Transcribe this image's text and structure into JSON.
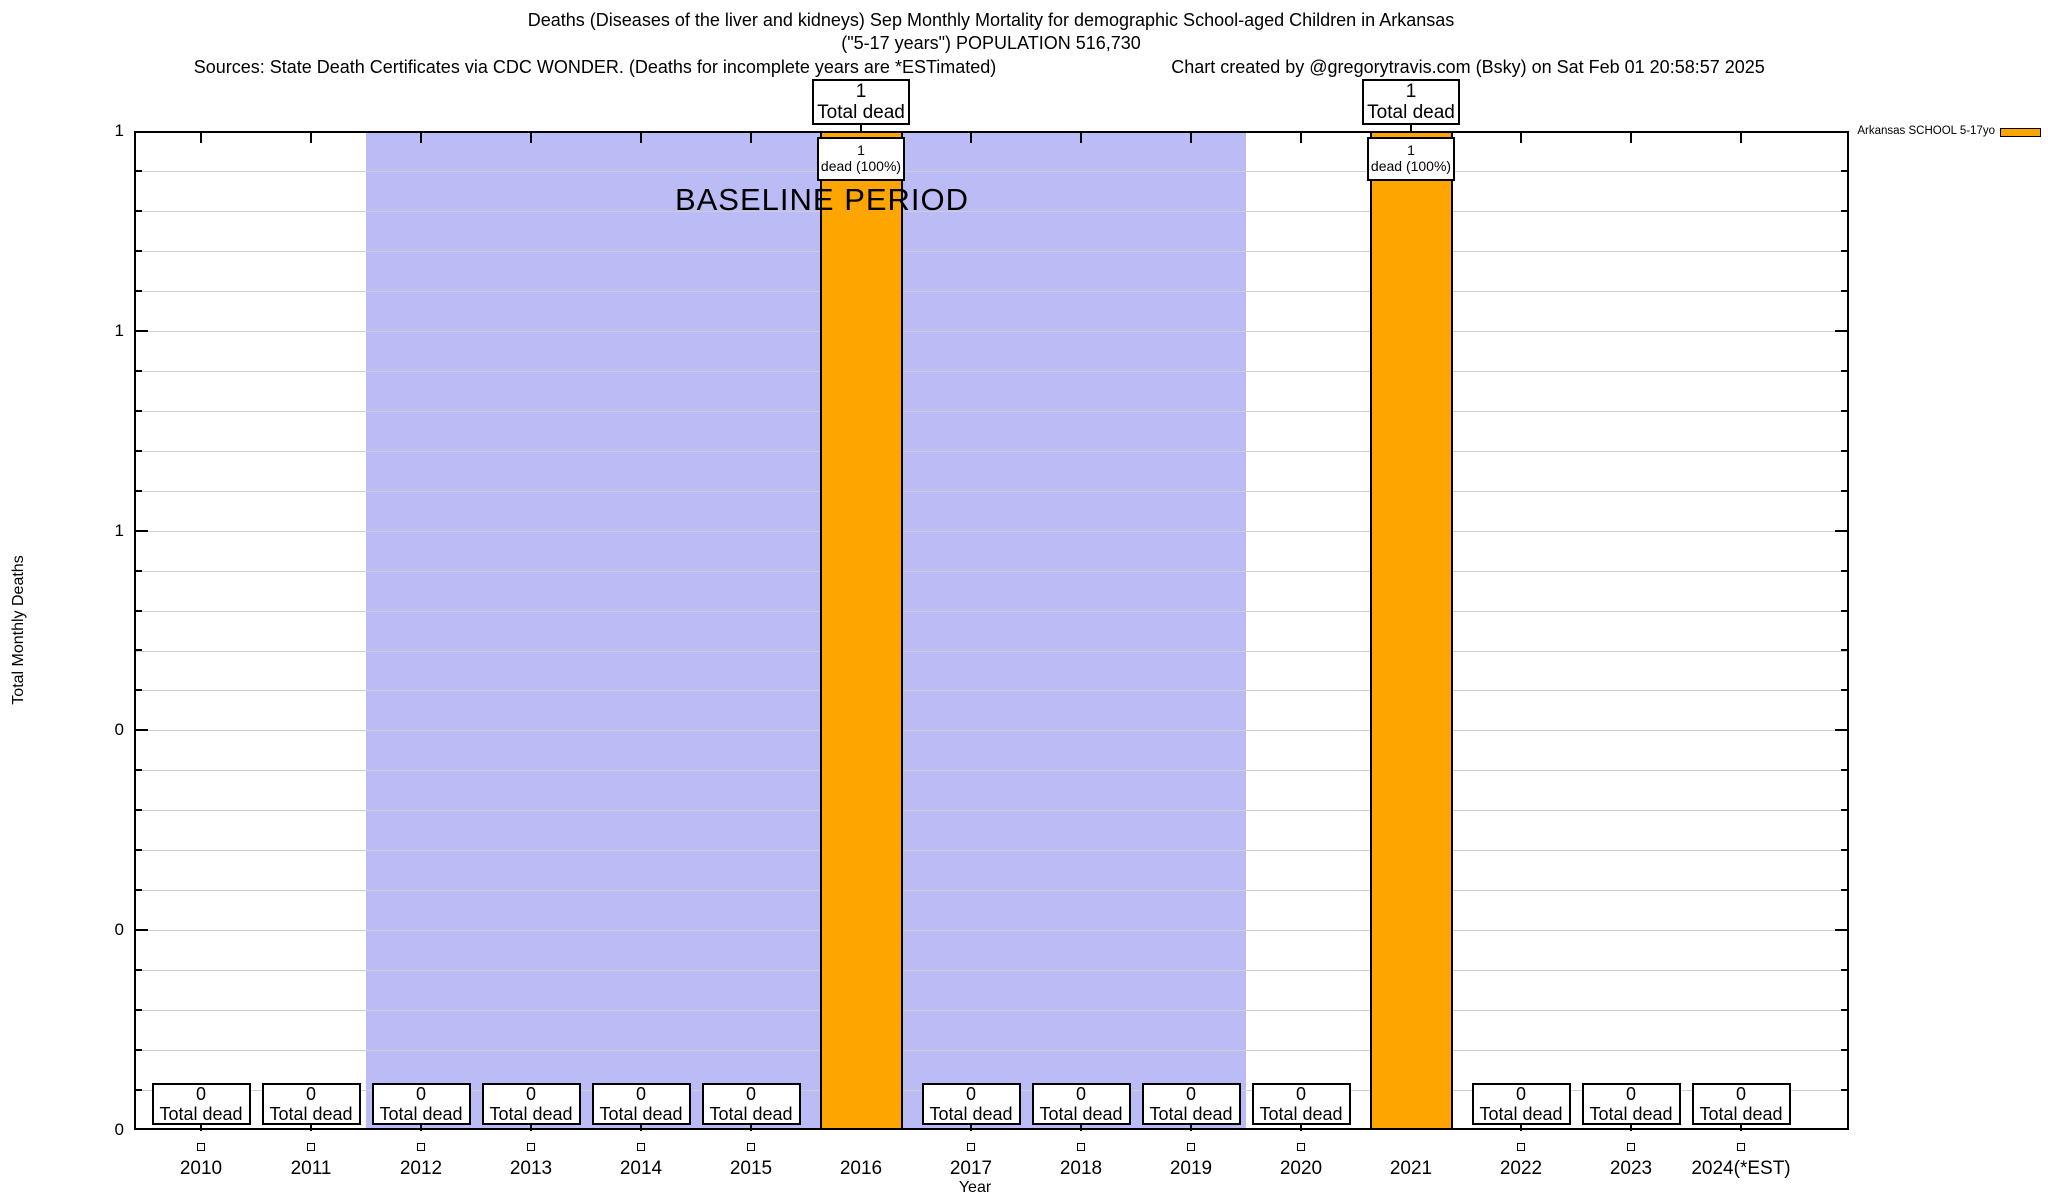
{
  "notes": {
    "sources": "Sources: State Death Certificates via CDC WONDER. (Deaths for incomplete years are *ESTimated)",
    "credit": "Chart created by @gregorytravis.com (Bsky) on Sat Feb 01 20:58:57 2025"
  },
  "legend": {
    "label": "Arkansas SCHOOL 5-17yo",
    "swatch_color": "#FFA500"
  },
  "chart_data": {
    "type": "bar",
    "title": "Deaths (Diseases of the liver and kidneys) Sep Monthly Mortality for demographic School-aged Children in Arkansas",
    "subtitle": "(\"5-17 years\") POPULATION 516,730",
    "categories": [
      "2010",
      "2011",
      "2012",
      "2013",
      "2014",
      "2015",
      "2016",
      "2017",
      "2018",
      "2019",
      "2020",
      "2021",
      "2022",
      "2023",
      "2024(*EST)"
    ],
    "values": [
      0,
      0,
      0,
      0,
      0,
      0,
      1,
      0,
      0,
      0,
      0,
      1,
      0,
      0,
      0
    ],
    "xlabel": "Year",
    "ylabel": "Total Monthly Deaths",
    "ylim": [
      0,
      1
    ],
    "y_tick_values": [
      0,
      0.2,
      0.4,
      0.6,
      0.8,
      1.0
    ],
    "y_tick_labels_bottom_to_top": [
      "0",
      "0",
      "0",
      "1",
      "1",
      "1"
    ],
    "grid": true,
    "minor_grid_step": 0.04,
    "bar_color": "#FFA500",
    "total_box_label": "Total dead",
    "inner_box_label": "dead (100%)",
    "baseline_band": {
      "label": "BASELINE PERIOD",
      "start_category": "2012",
      "end_category": "2019",
      "color": "#BBBBF5"
    },
    "legend_position": "top-right-outside"
  }
}
